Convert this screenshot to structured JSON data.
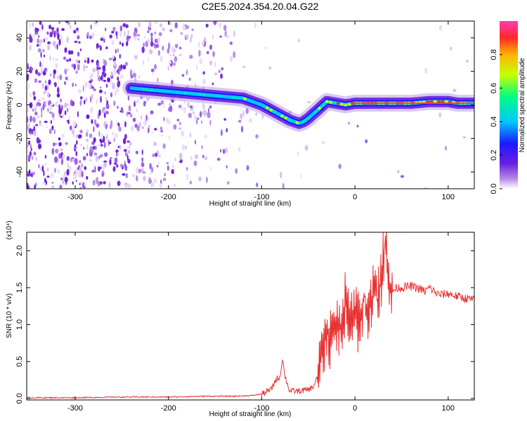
{
  "title": "C2E5.2024.354.20.04.G22",
  "chart_data": [
    {
      "type": "heatmap",
      "title": "C2E5.2024.354.20.04.G22",
      "xlabel": "Height of straight line (km)",
      "ylabel": "Frequency (Hz)",
      "xlim": [
        -352,
        128
      ],
      "ylim": [
        -50,
        50
      ],
      "x_ticks": [
        -300,
        -200,
        -100,
        0,
        100
      ],
      "y_ticks": [
        -40,
        -20,
        0,
        20,
        40
      ],
      "colorbar": {
        "label": "Normalized spectral amplitude",
        "range": [
          0,
          1
        ],
        "ticks": [
          0.0,
          0.2,
          0.4,
          0.6,
          0.8
        ],
        "tick_labels": [
          "0.0",
          "0.2",
          "0.4",
          "0.6",
          "0.8"
        ],
        "colormap": [
          "#ffffff",
          "#b58ae6",
          "#6a1fe0",
          "#1a1aff",
          "#00c8ff",
          "#00ff80",
          "#c8ff00",
          "#ffb400",
          "#ff2828",
          "#ff3cb4"
        ]
      },
      "frequency_track": {
        "x": [
          -240,
          -220,
          -200,
          -180,
          -160,
          -140,
          -120,
          -110,
          -100,
          -90,
          -80,
          -70,
          -60,
          -55,
          -50,
          -40,
          -30,
          -20,
          -10,
          0,
          20,
          40,
          60,
          80,
          100,
          110,
          128
        ],
        "y": [
          10,
          9,
          8,
          7,
          6,
          5,
          4,
          2,
          0,
          -3,
          -6,
          -9,
          -11,
          -10,
          -8,
          -3,
          2,
          1,
          0,
          1,
          1,
          1,
          1,
          2,
          2,
          1,
          1
        ]
      }
    },
    {
      "type": "line",
      "xlabel": "Height of straight line (km)",
      "ylabel": "SNR (10 * v/v)",
      "y_multiplier": "(x10⁴)",
      "xlim": [
        -352,
        128
      ],
      "ylim": [
        -0.02,
        2.25
      ],
      "x_ticks": [
        -300,
        -200,
        -100,
        0,
        100
      ],
      "y_ticks": [
        0.0,
        0.5,
        1.0,
        1.5,
        2.0
      ],
      "y_tick_labels": [
        "0.0",
        "0.5",
        "1.0",
        "1.5",
        "2.0"
      ],
      "line_color": "#e83232",
      "series": [
        {
          "x": [
            -352,
            -300,
            -250,
            -200,
            -160,
            -130,
            -110,
            -100,
            -90,
            -85,
            -80,
            -78,
            -75,
            -70,
            -60,
            -50,
            -45,
            -40,
            -35,
            -30,
            -25,
            -20,
            -15,
            -10,
            -5,
            0,
            5,
            10,
            15,
            20,
            25,
            30,
            33,
            36,
            40,
            45,
            50,
            60,
            70,
            75,
            80,
            90,
            100,
            110,
            120,
            128
          ],
          "y": [
            0.01,
            0.01,
            0.02,
            0.02,
            0.03,
            0.03,
            0.04,
            0.06,
            0.12,
            0.25,
            0.3,
            0.55,
            0.3,
            0.1,
            0.1,
            0.12,
            0.15,
            0.3,
            0.6,
            0.9,
            0.7,
            1.1,
            0.9,
            1.35,
            1.0,
            1.25,
            0.95,
            1.4,
            1.1,
            1.55,
            1.3,
            1.8,
            2.2,
            1.6,
            1.45,
            1.5,
            1.5,
            1.52,
            1.48,
            1.45,
            1.5,
            1.4,
            1.42,
            1.38,
            1.35,
            1.34
          ]
        }
      ]
    }
  ]
}
